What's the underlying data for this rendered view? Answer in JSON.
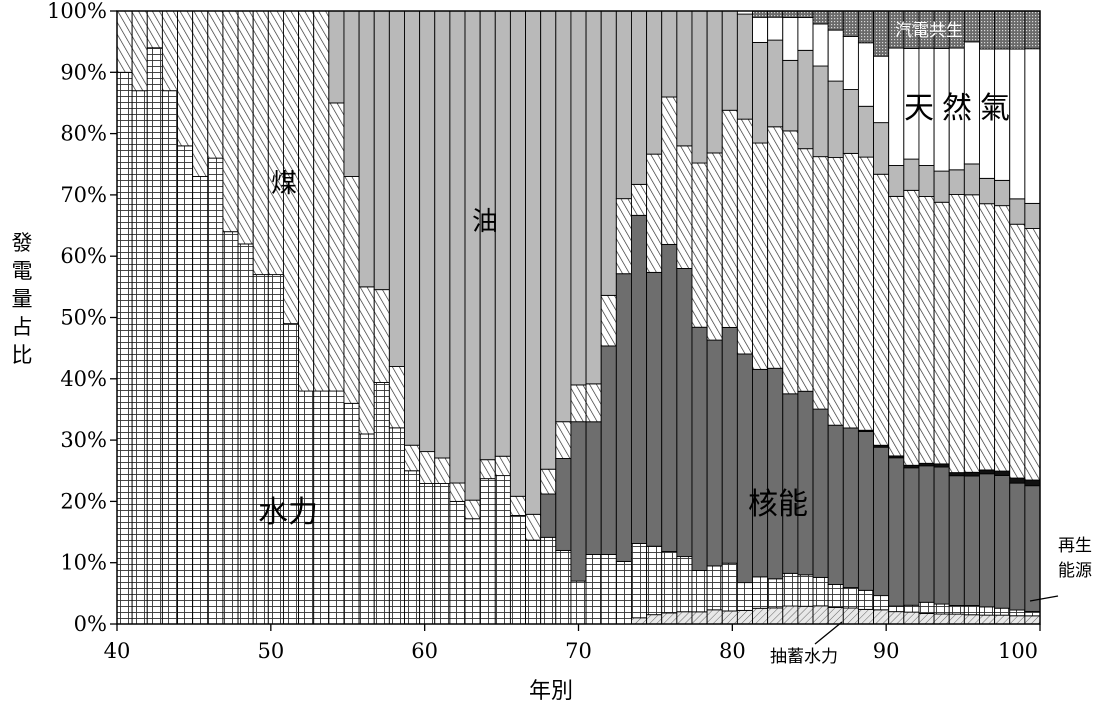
{
  "chart_data": {
    "type": "area",
    "stacked": "percent",
    "xlabel": "年別",
    "ylabel": "發電量占比",
    "x_ticks": [
      "40",
      "50",
      "60",
      "70",
      "80",
      "90",
      "100"
    ],
    "y_ticks": [
      "0%",
      "10%",
      "20%",
      "30%",
      "40%",
      "50%",
      "60%",
      "70%",
      "80%",
      "90%",
      "100%"
    ],
    "ylim": [
      0,
      100
    ],
    "x": [
      40,
      41,
      42,
      43,
      44,
      45,
      46,
      47,
      48,
      49,
      50,
      51,
      52,
      53,
      54,
      55,
      56,
      57,
      58,
      59,
      60,
      61,
      62,
      63,
      64,
      65,
      66,
      67,
      68,
      69,
      70,
      71,
      72,
      73,
      74,
      75,
      76,
      77,
      78,
      79,
      80,
      81,
      82,
      83,
      84,
      85,
      86,
      87,
      88,
      89,
      90,
      91,
      92,
      93,
      94,
      95,
      96,
      97,
      98,
      99,
      100
    ],
    "series": [
      {
        "name": "抽蓄水力",
        "values": [
          0,
          0,
          0,
          0,
          0,
          0,
          0,
          0,
          0,
          0,
          0,
          0,
          0,
          0,
          0,
          0,
          0,
          0,
          0,
          0,
          0,
          0,
          0,
          0,
          0,
          0,
          0,
          0,
          0,
          0,
          0,
          0,
          0,
          0,
          1,
          1.5,
          1.8,
          2,
          2,
          2.2,
          2.1,
          2.2,
          2.5,
          2.6,
          2.8,
          2.7,
          2.8,
          2.6,
          2.5,
          2.3,
          2.2,
          2.0,
          1.9,
          1.7,
          1.6,
          1.6,
          1.5,
          1.4,
          1.4,
          1.3,
          1.3
        ]
      },
      {
        "name": "水力",
        "values": [
          90,
          87,
          94,
          87,
          78,
          73,
          76,
          64,
          62,
          57,
          57,
          49,
          38,
          38,
          38,
          36,
          31,
          39,
          32,
          24,
          22,
          22,
          20,
          17,
          23,
          23,
          17,
          13,
          14,
          12,
          7,
          11,
          11,
          10,
          12,
          11,
          10,
          9,
          6.8,
          6.8,
          7.7,
          4.5,
          5,
          4.7,
          5.1,
          4.8,
          4.4,
          3.6,
          3.2,
          3.0,
          2.2,
          0.9,
          1.1,
          1.8,
          1.6,
          1.4,
          1.5,
          1.3,
          1.1,
          0.9,
          0.7
        ]
      },
      {
        "name": "核能",
        "values": [
          0,
          0,
          0,
          0,
          0,
          0,
          0,
          0,
          0,
          0,
          0,
          0,
          0,
          0,
          0,
          0,
          0,
          0,
          0,
          0,
          0,
          0,
          0,
          0,
          0,
          0,
          0,
          0,
          7,
          15,
          26,
          21,
          33,
          46,
          53,
          44,
          50,
          47,
          40,
          35,
          38,
          37,
          33,
          34,
          28,
          28,
          26,
          25,
          25,
          25,
          23,
          24,
          22,
          22,
          22,
          21,
          21,
          21,
          21,
          20,
          20
        ]
      },
      {
        "name": "再生能源",
        "values": [
          0,
          0,
          0,
          0,
          0,
          0,
          0,
          0,
          0,
          0,
          0,
          0,
          0,
          0,
          0,
          0,
          0,
          0,
          0,
          0,
          0,
          0,
          0,
          0,
          0,
          0,
          0,
          0,
          0,
          0,
          0,
          0,
          0,
          0,
          0,
          0,
          0,
          0,
          0,
          0,
          0,
          0,
          0,
          0,
          0,
          0,
          0,
          0,
          0,
          0.2,
          0.3,
          0.3,
          0.4,
          0.4,
          0.5,
          0.5,
          0.6,
          0.6,
          0.7,
          0.8,
          0.9
        ]
      },
      {
        "name": "煤",
        "values": [
          10,
          13,
          6,
          13,
          22,
          27,
          24,
          36,
          38,
          43,
          43,
          51,
          62,
          62,
          47,
          37,
          24,
          15,
          10,
          4,
          5,
          4,
          3,
          3,
          3,
          3,
          3,
          4,
          4,
          6,
          6,
          6,
          8,
          12,
          5,
          19,
          24,
          20,
          27,
          29,
          35,
          38,
          36,
          39,
          41,
          37,
          39,
          42,
          43,
          43,
          42,
          42,
          44,
          43,
          42,
          45,
          45,
          42,
          42,
          40,
          40
        ]
      },
      {
        "name": "油",
        "values": [
          0,
          0,
          0,
          0,
          0,
          0,
          0,
          0,
          0,
          0,
          0,
          0,
          0,
          0,
          15,
          27,
          45,
          45,
          58,
          68,
          69,
          70,
          77,
          79,
          71,
          69,
          76,
          78,
          74,
          67,
          61,
          59,
          45,
          30,
          28,
          23,
          14,
          22,
          25,
          22,
          16,
          17,
          16,
          14,
          11,
          15,
          14,
          12,
          10,
          8,
          8,
          5,
          5,
          5,
          5,
          4,
          5,
          4,
          4,
          4,
          4
        ]
      },
      {
        "name": "天然氣",
        "values": [
          0,
          0,
          0,
          0,
          0,
          0,
          0,
          0,
          0,
          0,
          0,
          0,
          0,
          0,
          0,
          0,
          0,
          0,
          0,
          0,
          0,
          0,
          0,
          0,
          0,
          0,
          0,
          0,
          0,
          0,
          0,
          0,
          0,
          0,
          0,
          0,
          0,
          0,
          0,
          0,
          0,
          0.5,
          4,
          3.7,
          6.7,
          5,
          6.5,
          8,
          8.3,
          10,
          10.3,
          19,
          17.7,
          18.9,
          19.7,
          19.7,
          19.8,
          20.4,
          20.8,
          23.6,
          24.6
        ]
      },
      {
        "name": "汽電共生",
        "values": [
          0,
          0,
          0,
          0,
          0,
          0,
          0,
          0,
          0,
          0,
          0,
          0,
          0,
          0,
          0,
          0,
          0,
          0,
          0,
          0,
          0,
          0,
          0,
          0,
          0,
          0,
          0,
          0,
          0,
          0,
          0,
          0,
          0,
          0,
          0,
          0,
          0,
          0,
          0,
          0,
          0,
          0,
          1,
          1,
          1,
          1,
          2,
          3,
          4,
          5,
          7,
          6,
          6,
          6,
          6,
          6,
          5,
          6,
          6,
          6,
          6
        ]
      }
    ],
    "annotations": {
      "hydro": "水力",
      "coal": "煤",
      "oil": "油",
      "nuclear": "核能",
      "gas": "天然氣",
      "cogeneration": "汽電共生",
      "renewable_line1": "再生",
      "renewable_line2": "能源",
      "pumped_hydro": "抽蓄水力"
    }
  }
}
